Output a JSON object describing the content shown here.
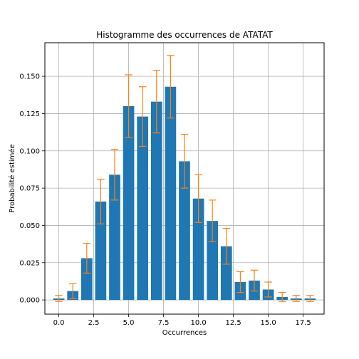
{
  "chart_data": {
    "type": "bar",
    "title": "Histogramme des occurrences de ATATAT",
    "xlabel": "Occurrences",
    "ylabel": "Probabilité estimée",
    "x": [
      0,
      1,
      2,
      3,
      4,
      5,
      6,
      7,
      8,
      9,
      10,
      11,
      12,
      13,
      14,
      15,
      16,
      17,
      18
    ],
    "values": [
      0.001,
      0.006,
      0.028,
      0.066,
      0.084,
      0.13,
      0.123,
      0.133,
      0.143,
      0.093,
      0.068,
      0.053,
      0.036,
      0.012,
      0.013,
      0.007,
      0.002,
      0.001,
      0.001
    ],
    "error_low": [
      0.002,
      0.005,
      0.01,
      0.015,
      0.017,
      0.021,
      0.02,
      0.021,
      0.021,
      0.018,
      0.016,
      0.014,
      0.012,
      0.007,
      0.007,
      0.005,
      0.003,
      0.002,
      0.002
    ],
    "error_high": [
      0.002,
      0.005,
      0.01,
      0.015,
      0.017,
      0.021,
      0.02,
      0.021,
      0.021,
      0.018,
      0.016,
      0.014,
      0.012,
      0.007,
      0.007,
      0.005,
      0.003,
      0.002,
      0.002
    ],
    "xlim": [
      -1,
      19
    ],
    "ylim": [
      -0.0095,
      0.1725
    ],
    "x_ticks": [
      0.0,
      2.5,
      5.0,
      7.5,
      10.0,
      12.5,
      15.0,
      17.5
    ],
    "x_tick_labels": [
      "0.0",
      "2.5",
      "5.0",
      "7.5",
      "10.0",
      "12.5",
      "15.0",
      "17.5"
    ],
    "y_ticks": [
      0.0,
      0.025,
      0.05,
      0.075,
      0.1,
      0.125,
      0.15
    ],
    "y_tick_labels": [
      "0.000",
      "0.025",
      "0.050",
      "0.075",
      "0.100",
      "0.125",
      "0.150"
    ],
    "grid": true,
    "bar_color": "#1f77b4",
    "error_color": "#ff7f0e"
  }
}
